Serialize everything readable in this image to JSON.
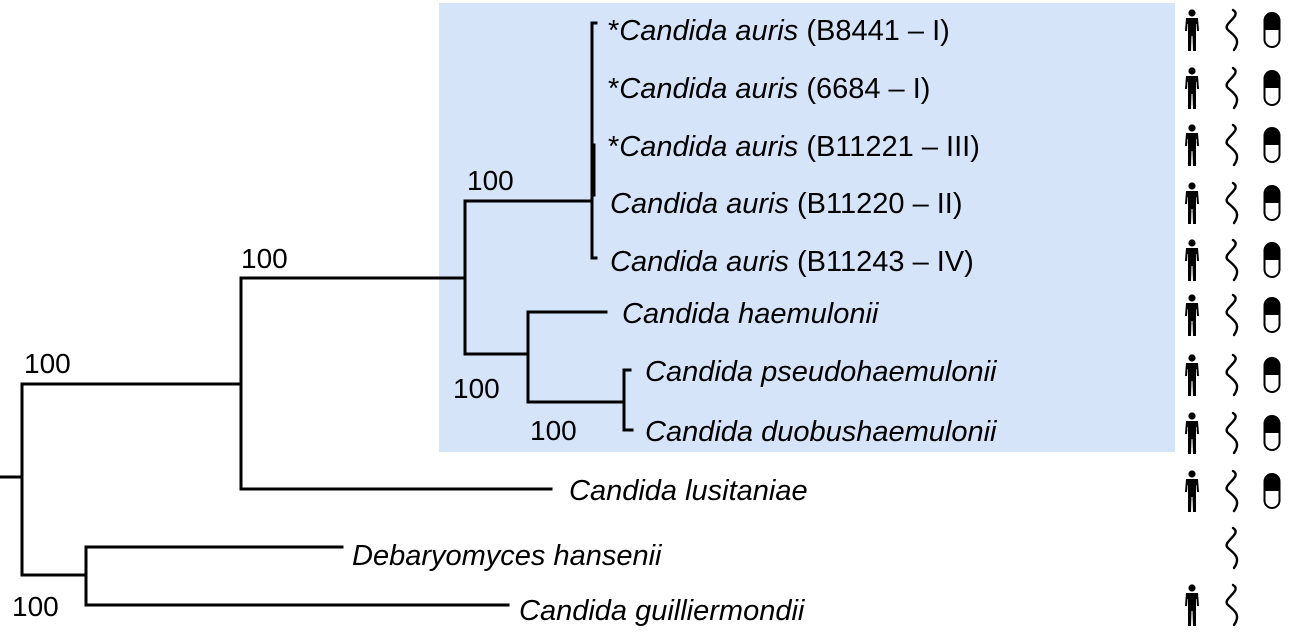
{
  "tree": {
    "bootstrap_labels": [
      "100",
      "100",
      "100",
      "100",
      "100",
      "100"
    ],
    "clade_highlight_color": "#d6e4fa",
    "taxa": [
      {
        "star": "*",
        "genus": "Candida",
        "species": "auris",
        "strain": "(B8441 – I)",
        "human_icon": true,
        "worm_icon": true,
        "pill_icon": true
      },
      {
        "star": "*",
        "genus": "Candida",
        "species": "auris",
        "strain": "(6684 – I)",
        "human_icon": true,
        "worm_icon": true,
        "pill_icon": true
      },
      {
        "star": "*",
        "genus": "Candida",
        "species": "auris",
        "strain": "(B11221 – III)",
        "human_icon": true,
        "worm_icon": true,
        "pill_icon": true
      },
      {
        "star": "",
        "genus": "Candida",
        "species": "auris",
        "strain": "(B11220 – II)",
        "human_icon": true,
        "worm_icon": true,
        "pill_icon": true
      },
      {
        "star": "",
        "genus": "Candida",
        "species": "auris",
        "strain": "(B11243 – IV)",
        "human_icon": true,
        "worm_icon": true,
        "pill_icon": true
      },
      {
        "star": "",
        "genus": "Candida",
        "species": "haemulonii",
        "strain": "",
        "human_icon": true,
        "worm_icon": true,
        "pill_icon": true
      },
      {
        "star": "",
        "genus": "Candida",
        "species": "pseudohaemulonii",
        "strain": "",
        "human_icon": true,
        "worm_icon": true,
        "pill_icon": true
      },
      {
        "star": "",
        "genus": "Candida",
        "species": "duobushaemulonii",
        "strain": "",
        "human_icon": true,
        "worm_icon": true,
        "pill_icon": true
      },
      {
        "star": "",
        "genus": "Candida",
        "species": "lusitaniae",
        "strain": "",
        "human_icon": true,
        "worm_icon": true,
        "pill_icon": true
      },
      {
        "star": "",
        "genus": "Debaryomyces",
        "species": "hansenii",
        "strain": "",
        "human_icon": false,
        "worm_icon": true,
        "pill_icon": false
      },
      {
        "star": "",
        "genus": "Candida",
        "species": "guilliermondii",
        "strain": "",
        "human_icon": true,
        "worm_icon": true,
        "pill_icon": false
      }
    ],
    "icon_legend_names": [
      "human-figure-icon",
      "worm-icon",
      "pill-icon"
    ]
  }
}
